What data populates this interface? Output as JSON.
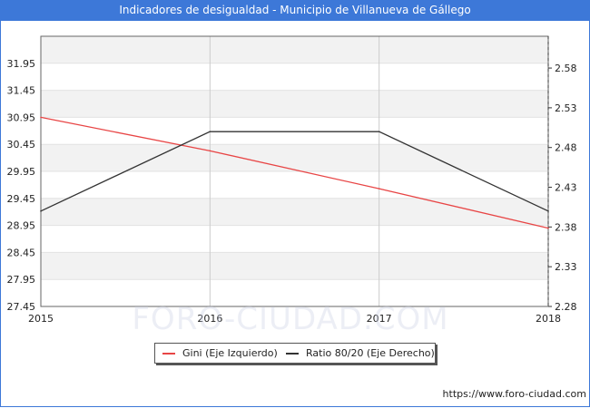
{
  "title": "Indicadores de desigualdad - Municipio de Villanueva de Gállego",
  "footer_url": "https://www.foro-ciudad.com",
  "watermark": "FORO-CIUDAD.COM",
  "colors": {
    "title_bg": "#3d78d8",
    "gini": "#e84545",
    "ratio": "#333333",
    "band": "#f2f2f2"
  },
  "legend": {
    "gini_label": "Gini (Eje Izquierdo)",
    "ratio_label": "Ratio 80/20 (Eje Derecho)"
  },
  "chart_data": {
    "type": "line",
    "x": [
      2015,
      2016,
      2017,
      2018
    ],
    "x_tick_labels": [
      "2015",
      "2016",
      "2017",
      "2018"
    ],
    "y_left": {
      "ylim": [
        27.45,
        32.45
      ],
      "tick_labels": [
        "27.45",
        "27.95",
        "28.45",
        "28.95",
        "29.45",
        "29.95",
        "30.45",
        "30.95",
        "31.45",
        "31.95"
      ]
    },
    "y_right": {
      "ylim": [
        2.28,
        2.62
      ],
      "tick_labels": [
        "2.28",
        "2.33",
        "2.38",
        "2.43",
        "2.48",
        "2.53",
        "2.58"
      ]
    },
    "grid": true,
    "legend_position": "bottom-center",
    "series": [
      {
        "name": "Gini (Eje Izquierdo)",
        "axis": "left",
        "values": [
          30.95,
          30.33,
          29.63,
          28.9
        ]
      },
      {
        "name": "Ratio 80/20 (Eje Derecho)",
        "axis": "right",
        "values": [
          2.4,
          2.5,
          2.5,
          2.4
        ]
      }
    ]
  }
}
